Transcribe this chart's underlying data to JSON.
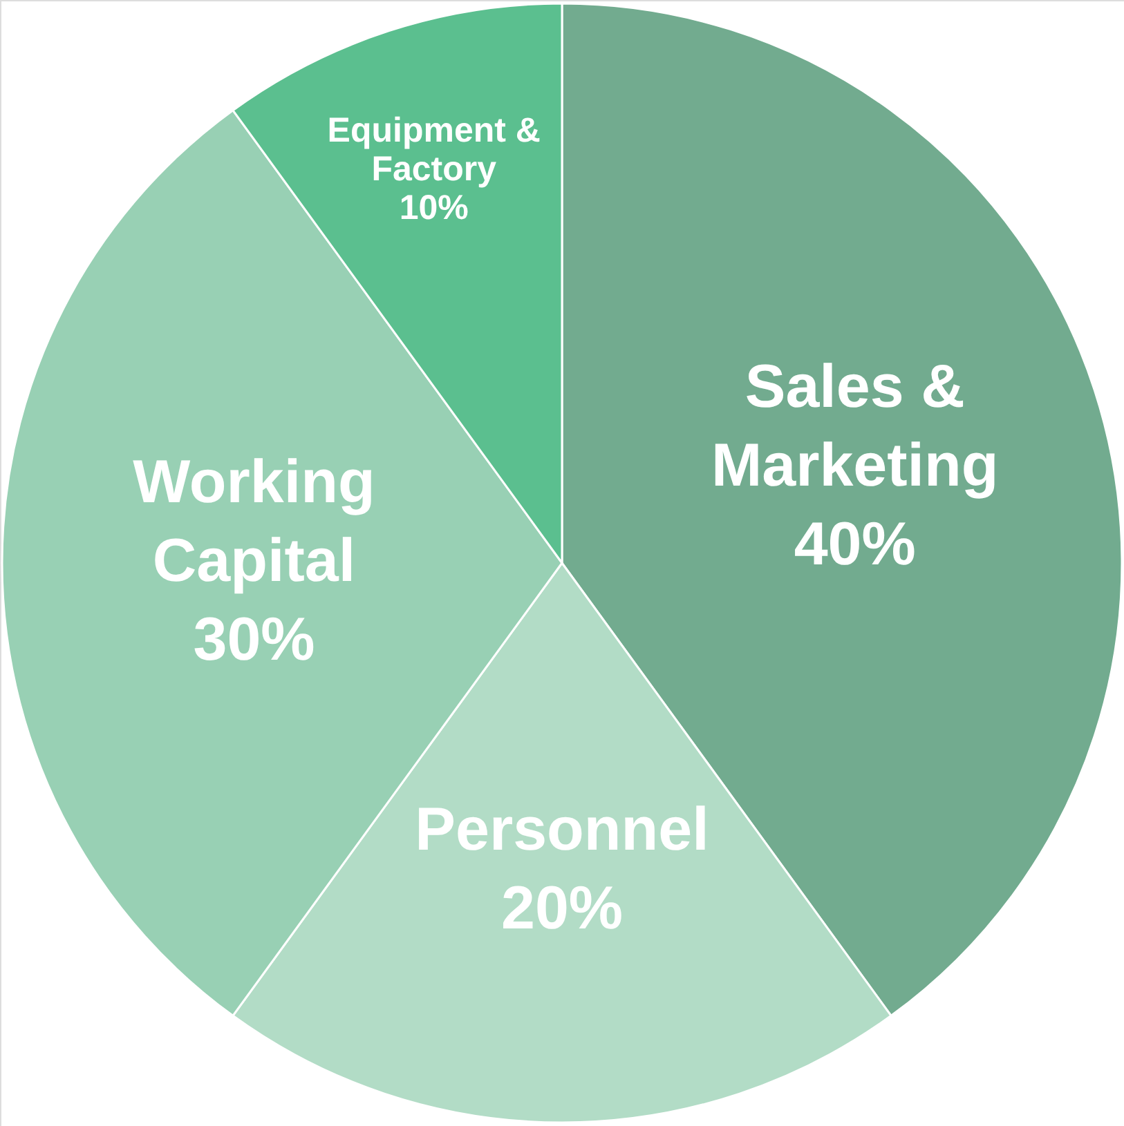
{
  "chart_data": {
    "type": "pie",
    "categories": [
      "Sales & Marketing",
      "Personnel",
      "Working Capital",
      "Equipment & Factory"
    ],
    "values": [
      40,
      20,
      30,
      10
    ],
    "value_labels": [
      "40%",
      "20%",
      "30%",
      "10%"
    ],
    "colors": [
      "#72ab8f",
      "#b2dcc6",
      "#98d0b4",
      "#5bbf8f"
    ]
  }
}
